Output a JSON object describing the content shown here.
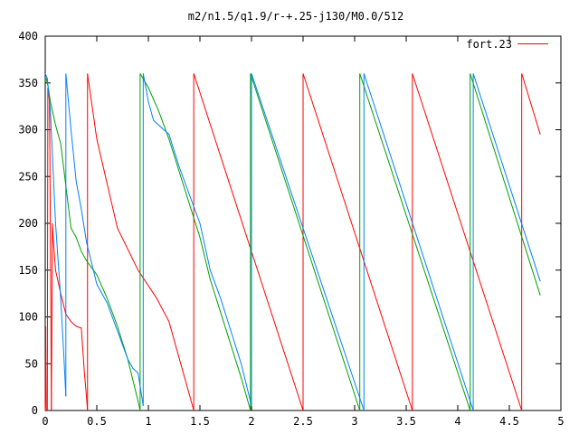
{
  "chart_data": {
    "type": "line",
    "title": "m2/n1.5/q1.9/r-+.25-j130/M0.0/512",
    "xlabel": "",
    "ylabel": "",
    "xlim": [
      0,
      5
    ],
    "ylim": [
      0,
      400
    ],
    "x_ticks": [
      "0",
      "0.5",
      "1",
      "1.5",
      "2",
      "2.5",
      "3",
      "3.5",
      "4",
      "4.5",
      "5"
    ],
    "y_ticks": [
      "0",
      "50",
      "100",
      "150",
      "200",
      "250",
      "300",
      "350",
      "400"
    ],
    "grid": false,
    "legend_position": "top-right",
    "series": [
      {
        "name": "fort.23",
        "color": "#ff0000",
        "segments": [
          [
            [
              0.0,
              0.5
            ],
            [
              0.005,
              90
            ],
            [
              0.01,
              2
            ]
          ],
          [
            [
              0.02,
              0
            ],
            [
              0.025,
              345
            ],
            [
              0.035,
              340
            ],
            [
              0.04,
              330
            ],
            [
              0.045,
              280
            ]
          ],
          [
            [
              0.06,
              0
            ],
            [
              0.07,
              200
            ],
            [
              0.08,
              180
            ],
            [
              0.1,
              150
            ],
            [
              0.15,
              125
            ],
            [
              0.2,
              103
            ],
            [
              0.25,
              95
            ],
            [
              0.3,
              90
            ],
            [
              0.35,
              88
            ],
            [
              0.38,
              40
            ],
            [
              0.4,
              15
            ],
            [
              0.41,
              0
            ]
          ],
          [
            [
              0.41,
              360
            ],
            [
              0.5,
              290
            ],
            [
              0.7,
              195
            ],
            [
              0.9,
              150
            ],
            [
              1.08,
              120
            ],
            [
              1.2,
              95
            ],
            [
              1.44,
              0
            ]
          ],
          [
            [
              1.44,
              360
            ],
            [
              2.5,
              0
            ]
          ],
          [
            [
              2.5,
              360
            ],
            [
              3.56,
              0
            ]
          ],
          [
            [
              3.56,
              360
            ],
            [
              4.62,
              0
            ]
          ],
          [
            [
              4.62,
              360
            ],
            [
              4.8,
              295
            ]
          ]
        ]
      },
      {
        "name": "",
        "color": "#00a000",
        "segments": [
          [
            [
              0.0,
              355
            ],
            [
              0.01,
              355
            ],
            [
              0.03,
              345
            ],
            [
              0.05,
              330
            ],
            [
              0.1,
              305
            ],
            [
              0.15,
              285
            ],
            [
              0.2,
              240
            ],
            [
              0.25,
              195
            ],
            [
              0.3,
              185
            ],
            [
              0.35,
              170
            ],
            [
              0.4,
              160
            ],
            [
              0.5,
              145
            ],
            [
              0.6,
              120
            ],
            [
              0.7,
              90
            ],
            [
              0.8,
              55
            ],
            [
              0.9,
              10
            ],
            [
              0.92,
              0
            ]
          ],
          [
            [
              0.92,
              360
            ],
            [
              1.0,
              345
            ],
            [
              1.1,
              320
            ],
            [
              1.2,
              290
            ],
            [
              1.3,
              255
            ],
            [
              1.4,
              220
            ],
            [
              1.5,
              185
            ],
            [
              1.6,
              140
            ],
            [
              1.7,
              105
            ],
            [
              1.8,
              70
            ],
            [
              1.9,
              35
            ],
            [
              1.99,
              0
            ]
          ],
          [
            [
              1.99,
              360
            ],
            [
              3.05,
              0
            ]
          ],
          [
            [
              3.05,
              360
            ],
            [
              4.12,
              0
            ]
          ],
          [
            [
              4.12,
              360
            ],
            [
              4.8,
              123
            ]
          ]
        ]
      },
      {
        "name": "",
        "color": "#0080ff",
        "segments": [
          [
            [
              0.0,
              360
            ],
            [
              0.02,
              355
            ],
            [
              0.05,
              320
            ],
            [
              0.1,
              200
            ],
            [
              0.15,
              120
            ],
            [
              0.18,
              60
            ],
            [
              0.2,
              15
            ]
          ],
          [
            [
              0.2,
              360
            ],
            [
              0.25,
              300
            ],
            [
              0.3,
              245
            ],
            [
              0.35,
              215
            ],
            [
              0.4,
              180
            ],
            [
              0.5,
              135
            ],
            [
              0.6,
              115
            ],
            [
              0.7,
              85
            ],
            [
              0.8,
              55
            ],
            [
              0.85,
              45
            ],
            [
              0.9,
              40
            ],
            [
              0.95,
              5
            ]
          ],
          [
            [
              0.95,
              360
            ],
            [
              1.0,
              330
            ],
            [
              1.05,
              310
            ],
            [
              1.1,
              305
            ],
            [
              1.2,
              295
            ],
            [
              1.3,
              260
            ],
            [
              1.4,
              230
            ],
            [
              1.5,
              200
            ],
            [
              1.6,
              150
            ],
            [
              1.7,
              120
            ],
            [
              1.8,
              85
            ],
            [
              1.9,
              50
            ],
            [
              2.0,
              5
            ]
          ],
          [
            [
              2.0,
              360
            ],
            [
              3.09,
              0
            ]
          ],
          [
            [
              3.09,
              360
            ],
            [
              4.15,
              0
            ]
          ],
          [
            [
              4.15,
              360
            ],
            [
              4.8,
              138
            ]
          ]
        ]
      }
    ]
  }
}
